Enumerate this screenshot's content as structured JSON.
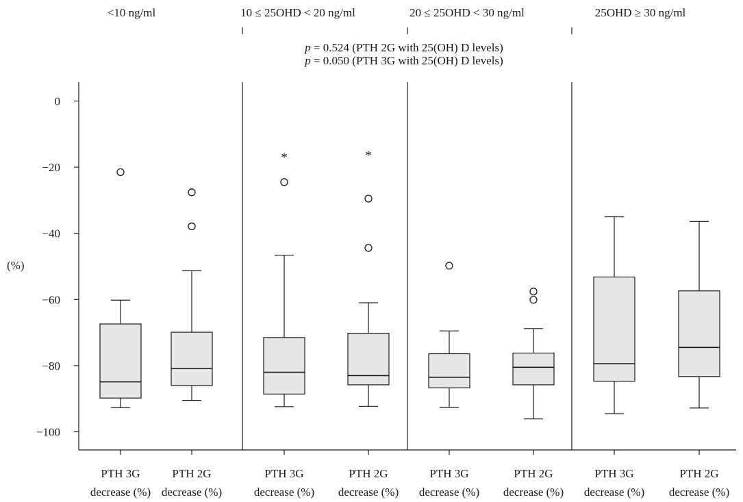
{
  "chart_data": {
    "type": "box",
    "ylabel": "(%)",
    "ylim": [
      -106,
      6
    ],
    "yticks": [
      0,
      -20,
      -40,
      -60,
      -80,
      -100
    ],
    "annotations": [
      {
        "label": "p",
        "text": " = 0.524 (PTH 2G with 25(OH) D levels)"
      },
      {
        "label": "p",
        "text": " = 0.050 (PTH 3G with 25(OH) D levels)"
      }
    ],
    "panels": [
      {
        "header": "<10 ng/ml",
        "boxes": [
          {
            "label_line1": "PTH 3G",
            "label_line2": "decrease (%)",
            "whisker_low": -92.7,
            "q1": -89.8,
            "median": -84.9,
            "q3": -67.4,
            "whisker_high": -60.2,
            "outliers": [
              -21.5
            ],
            "extremes": []
          },
          {
            "label_line1": "PTH 2G",
            "label_line2": "decrease (%)",
            "whisker_low": -90.5,
            "q1": -86.0,
            "median": -80.9,
            "q3": -69.9,
            "whisker_high": -51.3,
            "outliers": [
              -27.6,
              -37.9
            ],
            "extremes": []
          }
        ]
      },
      {
        "header": "10 ≤ 25OHD < 20 ng/ml",
        "boxes": [
          {
            "label_line1": "PTH 3G",
            "label_line2": "decrease (%)",
            "whisker_low": -92.4,
            "q1": -88.6,
            "median": -82.0,
            "q3": -71.5,
            "whisker_high": -46.6,
            "outliers": [
              -24.5
            ],
            "extremes": [
              -16.5
            ]
          },
          {
            "label_line1": "PTH 2G",
            "label_line2": "decrease (%)",
            "whisker_low": -92.3,
            "q1": -85.8,
            "median": -83.0,
            "q3": -70.2,
            "whisker_high": -61.0,
            "outliers": [
              -29.5,
              -44.4
            ],
            "extremes": [
              -15.8
            ]
          }
        ]
      },
      {
        "header": "20 ≤ 25OHD < 30 ng/ml",
        "boxes": [
          {
            "label_line1": "PTH 3G",
            "label_line2": "decrease (%)",
            "whisker_low": -92.6,
            "q1": -86.7,
            "median": -83.5,
            "q3": -76.4,
            "whisker_high": -69.5,
            "outliers": [
              -49.8
            ],
            "extremes": []
          },
          {
            "label_line1": "PTH 2G",
            "label_line2": "decrease (%)",
            "whisker_low": -96.1,
            "q1": -85.8,
            "median": -80.5,
            "q3": -76.2,
            "whisker_high": -68.8,
            "outliers": [
              -57.6,
              -60.1
            ],
            "extremes": []
          }
        ]
      },
      {
        "header": "25OHD ≥ 30 ng/ml",
        "boxes": [
          {
            "label_line1": "PTH 3G",
            "label_line2": "decrease (%)",
            "whisker_low": -94.5,
            "q1": -84.7,
            "median": -79.4,
            "q3": -53.2,
            "whisker_high": -35.0,
            "outliers": [],
            "extremes": []
          },
          {
            "label_line1": "PTH 2G",
            "label_line2": "decrease (%)",
            "whisker_low": -92.8,
            "q1": -83.3,
            "median": -74.5,
            "q3": -57.4,
            "whisker_high": -36.4,
            "outliers": [],
            "extremes": []
          }
        ]
      }
    ]
  }
}
